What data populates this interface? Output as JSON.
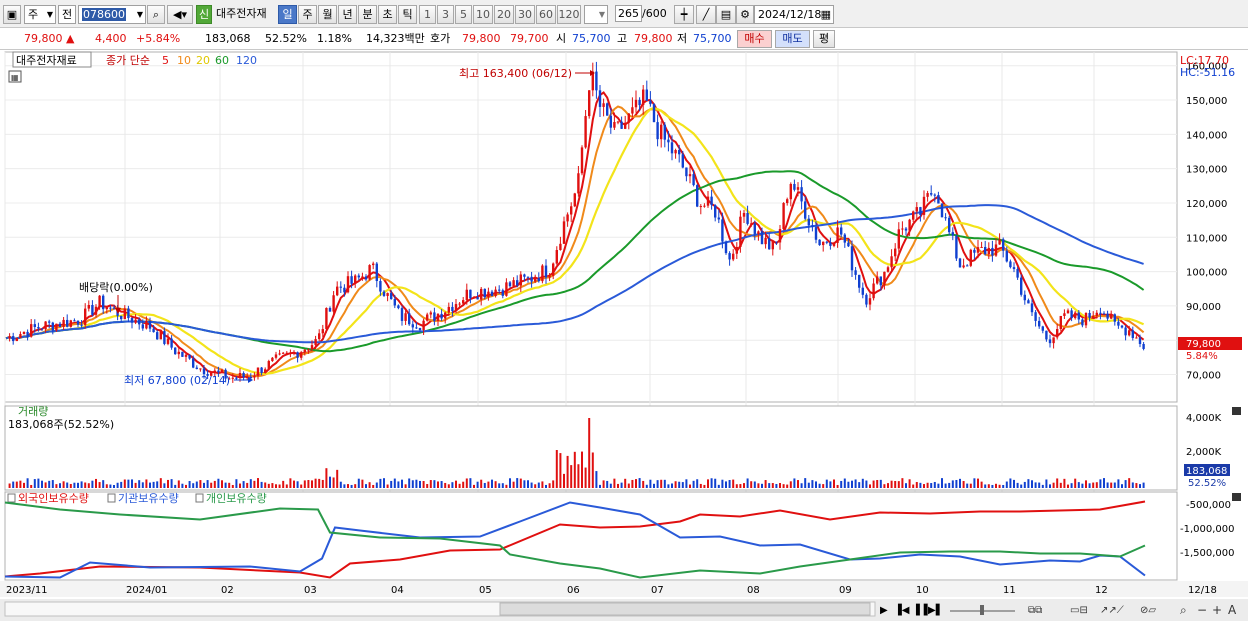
{
  "toolbar": {
    "market": "주",
    "type": "전",
    "code": "078600",
    "badge_new": "신",
    "stock_name": "대주전자재",
    "periods": [
      "일",
      "주",
      "월",
      "년",
      "분",
      "초",
      "틱"
    ],
    "active_period": "일",
    "intervals": [
      "1",
      "3",
      "5",
      "10",
      "20",
      "30",
      "60",
      "120"
    ],
    "count": "265",
    "count_max": "/600",
    "date": "2024/12/18"
  },
  "quote": {
    "price": "79,800",
    "change": "4,400",
    "change_pct": "+5.84%",
    "volume": "183,068",
    "ratio": "52.52%",
    "rate": "1.18%",
    "amount": "14,323백만",
    "hoga_label": "호가",
    "hoga_ask": "79,800",
    "hoga_bid": "79,700",
    "open_label": "시",
    "open": "75,700",
    "high_label": "고",
    "high": "79,800",
    "low_label": "저",
    "low": "75,700",
    "buy": "매수",
    "sell": "매도",
    "eval": "평"
  },
  "price_panel": {
    "name": "대주전자재료",
    "legend_prefix": "종가 단순",
    "ma": [
      {
        "label": "5",
        "color": "#e01010"
      },
      {
        "label": "10",
        "color": "#f08a1a"
      },
      {
        "label": "20",
        "color": "#f3e41a"
      },
      {
        "label": "60",
        "color": "#1a9a2a"
      },
      {
        "label": "120",
        "color": "#2a5ad8"
      }
    ],
    "high_note": "최고 163,400 (06/12)",
    "low_note": "최저 67,800 (02/14)",
    "dividend_note": "배당락(0.00%)",
    "lc": "LC:17.70",
    "hc": "HC:-51.16",
    "price_ticks": [
      "160,000",
      "150,000",
      "140,000",
      "130,000",
      "120,000",
      "110,000",
      "100,000",
      "90,000",
      "80,000",
      "70,000"
    ],
    "price_axis_min": 62000,
    "price_axis_max": 164000,
    "current_price": "79,800",
    "current_pct": "5.84%"
  },
  "volume_panel": {
    "title": "거래량",
    "value": "183,068주(52.52%)",
    "ticks": [
      "4,000K",
      "2,000K"
    ],
    "current": "183,068",
    "current_pct": "52.52%"
  },
  "holding_panel": {
    "series": [
      {
        "name": "외국인보유수량",
        "color": "#e01010"
      },
      {
        "name": "기관보유수량",
        "color": "#2a5ad8"
      },
      {
        "name": "개인보유수량",
        "color": "#2a9a4a"
      }
    ],
    "ticks": [
      "-500,000",
      "-1,000,000",
      "-1,500,000"
    ]
  },
  "x_axis": {
    "labels": [
      "2023/11",
      "2024/01",
      "02",
      "03",
      "04",
      "05",
      "06",
      "07",
      "08",
      "09",
      "10",
      "11",
      "12"
    ],
    "end_label": "12/18"
  },
  "colors": {
    "up": "#e01010",
    "down": "#1040d0",
    "accent": "#4a78c8"
  }
}
